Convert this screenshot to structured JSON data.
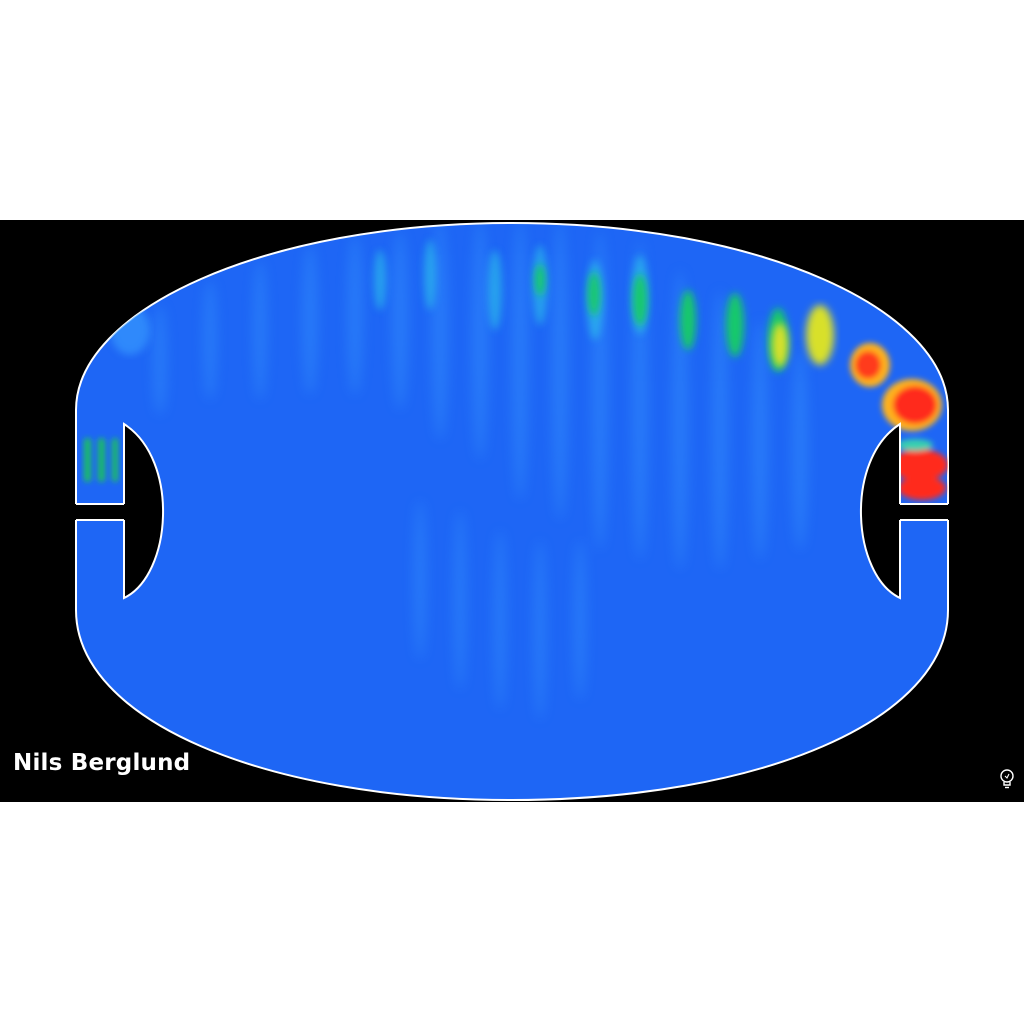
{
  "watermark": {
    "author": "Nils Berglund"
  },
  "logo": {
    "icon": "lightbulb-icon"
  },
  "colors": {
    "background": "#000000",
    "field_base": "#1e66f5",
    "boundary": "#ffffff",
    "high": "#ff2a1a",
    "mid": "#f2e01a",
    "low": "#19c8a0"
  }
}
